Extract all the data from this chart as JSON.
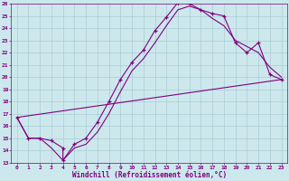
{
  "xlabel": "Windchill (Refroidissement éolien,°C)",
  "xlim": [
    -0.5,
    23.5
  ],
  "ylim": [
    13,
    26
  ],
  "xticks": [
    0,
    1,
    2,
    3,
    4,
    5,
    6,
    7,
    8,
    9,
    10,
    11,
    12,
    13,
    14,
    15,
    16,
    17,
    18,
    19,
    20,
    21,
    22,
    23
  ],
  "yticks": [
    13,
    14,
    15,
    16,
    17,
    18,
    19,
    20,
    21,
    22,
    23,
    24,
    25,
    26
  ],
  "bg_color": "#cce8ec",
  "line_color": "#800080",
  "grid_color": "#aaccd4",
  "lines": [
    {
      "x": [
        0,
        1,
        2,
        3,
        4,
        4,
        5,
        6,
        7,
        8,
        9,
        10,
        11,
        12,
        13,
        14,
        14,
        15,
        16,
        17,
        18,
        19,
        20,
        21,
        22,
        23
      ],
      "y": [
        16.7,
        15.0,
        15.0,
        14.8,
        14.2,
        13.2,
        14.5,
        15.0,
        16.3,
        18.0,
        19.8,
        21.2,
        22.2,
        23.8,
        24.9,
        26.1,
        26.1,
        26.0,
        25.5,
        25.2,
        25.0,
        22.8,
        22.0,
        22.8,
        20.2,
        19.8
      ],
      "markers": true
    },
    {
      "x": [
        0,
        1,
        2,
        3,
        4,
        5,
        6,
        7,
        8,
        9,
        10,
        11,
        12,
        13,
        14,
        15,
        16,
        17,
        18,
        19,
        20,
        21,
        22,
        23
      ],
      "y": [
        16.7,
        15.0,
        15.0,
        14.2,
        13.2,
        14.2,
        14.5,
        15.5,
        17.0,
        18.8,
        20.5,
        21.5,
        22.8,
        24.2,
        25.5,
        25.8,
        25.5,
        24.8,
        24.2,
        23.0,
        22.5,
        22.0,
        20.8,
        20.0
      ],
      "markers": false
    },
    {
      "x": [
        0,
        23
      ],
      "y": [
        16.7,
        19.8
      ],
      "markers": false
    }
  ]
}
